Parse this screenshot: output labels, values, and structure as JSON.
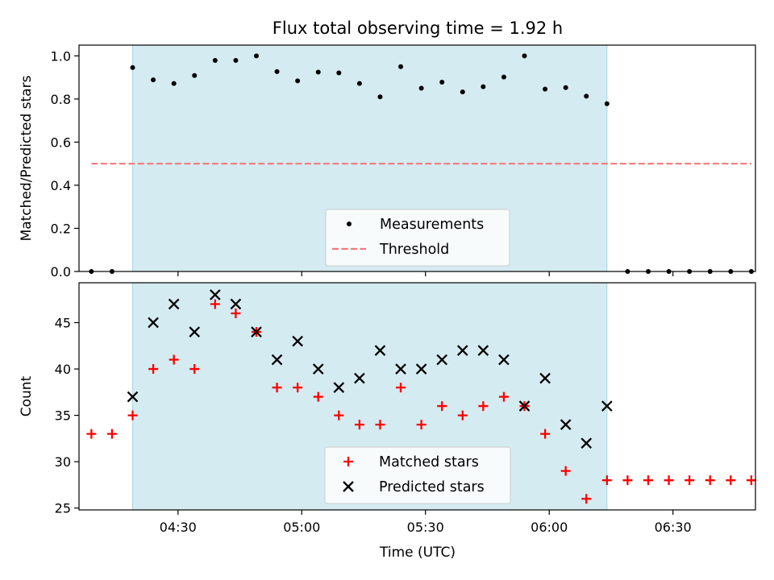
{
  "chart_data": {
    "type": "scatter",
    "title": "Flux total observing time = 1.92 h",
    "xlabel": "Time (UTC)",
    "x_tick_labels": [
      "04:30",
      "05:00",
      "05:30",
      "06:00",
      "06:30"
    ],
    "x_tick_minutes": [
      270,
      300,
      330,
      360,
      390
    ],
    "xlim_minutes": [
      246,
      410
    ],
    "observing_window_minutes": [
      259,
      374
    ],
    "observing_window_color": "#d4ebf1",
    "sample_times_minutes": [
      249,
      254,
      259,
      264,
      269,
      274,
      279,
      284,
      289,
      294,
      299,
      304,
      309,
      314,
      319,
      324,
      329,
      334,
      339,
      344,
      349,
      354,
      359,
      364,
      369,
      374,
      379,
      384,
      389,
      394,
      399,
      404,
      409
    ],
    "panels": [
      {
        "ylabel": "Matched/Predicted stars",
        "ylim": [
          0,
          1.05
        ],
        "y_ticks": [
          0.0,
          0.2,
          0.4,
          0.6,
          0.8,
          1.0
        ],
        "y_tick_labels": [
          "0.0",
          "0.2",
          "0.4",
          "0.6",
          "0.8",
          "1.0"
        ],
        "legend_position": "lower-center",
        "series": [
          {
            "name": "Measurements",
            "marker": "dot",
            "color": "#000000",
            "values": [
              0.0,
              0.0,
              0.946,
              0.889,
              0.872,
              0.909,
              0.979,
              0.979,
              1.0,
              0.927,
              0.884,
              0.925,
              0.921,
              0.872,
              0.81,
              0.95,
              0.85,
              0.878,
              0.833,
              0.857,
              0.902,
              1.0,
              0.846,
              0.853,
              0.813,
              0.778,
              0.0,
              0.0,
              0.0,
              0.0,
              0.0,
              0.0,
              0.0
            ]
          },
          {
            "name": "Threshold",
            "marker": "dashed-line",
            "color": "#f47a7a",
            "value": 0.5,
            "x_range_minutes": [
              249,
              409
            ]
          }
        ]
      },
      {
        "ylabel": "Count",
        "ylim": [
          24.8,
          49.3
        ],
        "y_ticks": [
          25,
          30,
          35,
          40,
          45
        ],
        "y_tick_labels": [
          "25",
          "30",
          "35",
          "40",
          "45"
        ],
        "legend_position": "lower-center",
        "series": [
          {
            "name": "Matched stars",
            "marker": "plus",
            "color": "#ff0000",
            "values": [
              33,
              33,
              35,
              40,
              41,
              40,
              47,
              46,
              44,
              38,
              38,
              37,
              35,
              34,
              34,
              38,
              34,
              36,
              35,
              36,
              37,
              36,
              33,
              29,
              26,
              28,
              28,
              28,
              28,
              28,
              28,
              28,
              28
            ]
          },
          {
            "name": "Predicted stars",
            "marker": "x",
            "color": "#000000",
            "values": [
              null,
              null,
              37,
              45,
              47,
              44,
              48,
              47,
              44,
              41,
              43,
              40,
              38,
              39,
              42,
              40,
              40,
              41,
              42,
              42,
              41,
              36,
              39,
              34,
              32,
              36,
              null,
              null,
              null,
              null,
              null,
              null,
              null
            ]
          }
        ]
      }
    ]
  }
}
